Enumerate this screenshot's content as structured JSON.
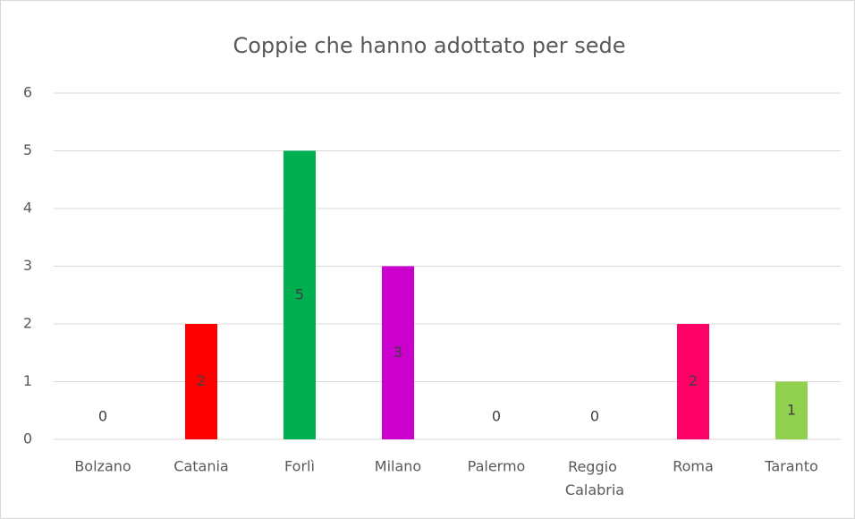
{
  "chart_data": {
    "type": "bar",
    "title": "Coppie che hanno adottato per sede",
    "categories": [
      "Bolzano",
      "Catania",
      "Forlì",
      "Milano",
      "Palermo",
      "Reggio Calabria",
      "Roma",
      "Taranto"
    ],
    "values": [
      0,
      2,
      5,
      3,
      0,
      0,
      2,
      1
    ],
    "colors": [
      null,
      "#ff0000",
      "#00b050",
      "#cc00cc",
      null,
      null,
      "#ff0066",
      "#92d050"
    ],
    "ylim": [
      0,
      6
    ],
    "yticks": [
      0,
      1,
      2,
      3,
      4,
      5,
      6
    ],
    "grid": true
  }
}
